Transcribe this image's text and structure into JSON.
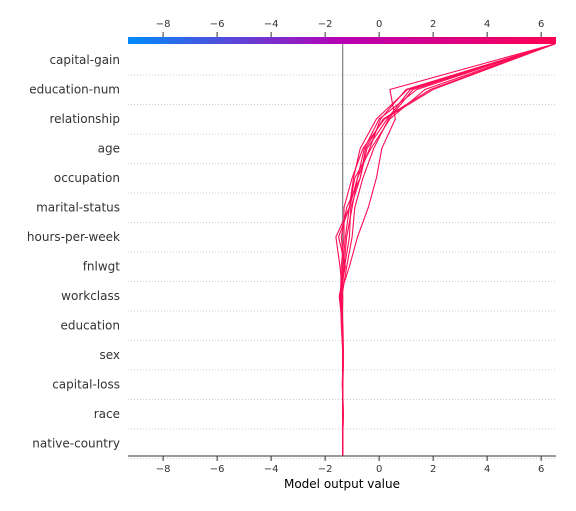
{
  "chart_data": {
    "type": "line",
    "title": "",
    "xlabel": "Model output value",
    "xlim": [
      -9.3,
      6.55
    ],
    "x_ticks": [
      -8,
      -6,
      -4,
      -2,
      0,
      2,
      4,
      6
    ],
    "x_tick_labels": [
      "−8",
      "−6",
      "−4",
      "−2",
      "0",
      "2",
      "4",
      "6"
    ],
    "base_value": -1.35,
    "features": [
      "capital-gain",
      "education-num",
      "relationship",
      "age",
      "occupation",
      "marital-status",
      "hours-per-week",
      "fnlwgt",
      "workclass",
      "education",
      "sex",
      "capital-loss",
      "race",
      "native-country"
    ],
    "line_color": "#ff0d57",
    "colorbar": {
      "low_color": "#008bfb",
      "mid_color": "#b700b4",
      "high_color": "#ff0052"
    },
    "base_line_color": "#808080",
    "grid": "dotted-horizontal",
    "series": [
      {
        "values": [
          -1.35,
          -1.33,
          -1.36,
          -1.33,
          -1.38,
          -1.45,
          -1.3,
          -1.4,
          -1.2,
          -0.7,
          -0.5,
          0.15,
          1.9,
          6.5
        ]
      },
      {
        "values": [
          -1.35,
          -1.34,
          -1.35,
          -1.32,
          -1.36,
          -1.48,
          -1.25,
          -1.5,
          -1.1,
          -0.9,
          -0.3,
          0.4,
          1.7,
          6.5
        ]
      },
      {
        "values": [
          -1.35,
          -1.34,
          -1.36,
          -1.34,
          -1.4,
          -1.43,
          -1.4,
          -1.3,
          -1.3,
          -1.0,
          -0.6,
          0.2,
          2.0,
          6.5
        ]
      },
      {
        "values": [
          -1.35,
          -1.33,
          -1.35,
          -1.33,
          -1.37,
          -1.35,
          -1.45,
          -1.6,
          -1.1,
          -0.8,
          -0.55,
          0.0,
          1.4,
          6.5
        ]
      },
      {
        "values": [
          -1.35,
          -1.33,
          -1.35,
          -1.34,
          -1.35,
          -1.38,
          -1.2,
          -1.0,
          -0.9,
          -0.6,
          -0.2,
          0.35,
          1.25,
          6.5
        ]
      },
      {
        "values": [
          -1.35,
          -1.34,
          -1.34,
          -1.32,
          -1.34,
          -1.45,
          -1.1,
          -0.8,
          -0.4,
          -0.1,
          0.1,
          0.6,
          0.4,
          6.5
        ]
      },
      {
        "values": [
          -1.35,
          -1.33,
          -1.36,
          -1.34,
          -1.38,
          -1.42,
          -1.3,
          -1.2,
          -1.0,
          -0.8,
          -0.35,
          0.05,
          1.0,
          6.5
        ]
      },
      {
        "values": [
          -1.35,
          -1.33,
          -1.35,
          -1.33,
          -1.37,
          -1.4,
          -1.28,
          -1.1,
          -1.05,
          -0.7,
          -0.45,
          0.3,
          1.15,
          6.5
        ]
      },
      {
        "values": [
          -1.35,
          -1.34,
          -1.35,
          -1.33,
          -1.36,
          -1.44,
          -1.35,
          -1.25,
          -1.1,
          -0.95,
          -0.7,
          -0.1,
          1.05,
          6.5
        ]
      }
    ]
  }
}
